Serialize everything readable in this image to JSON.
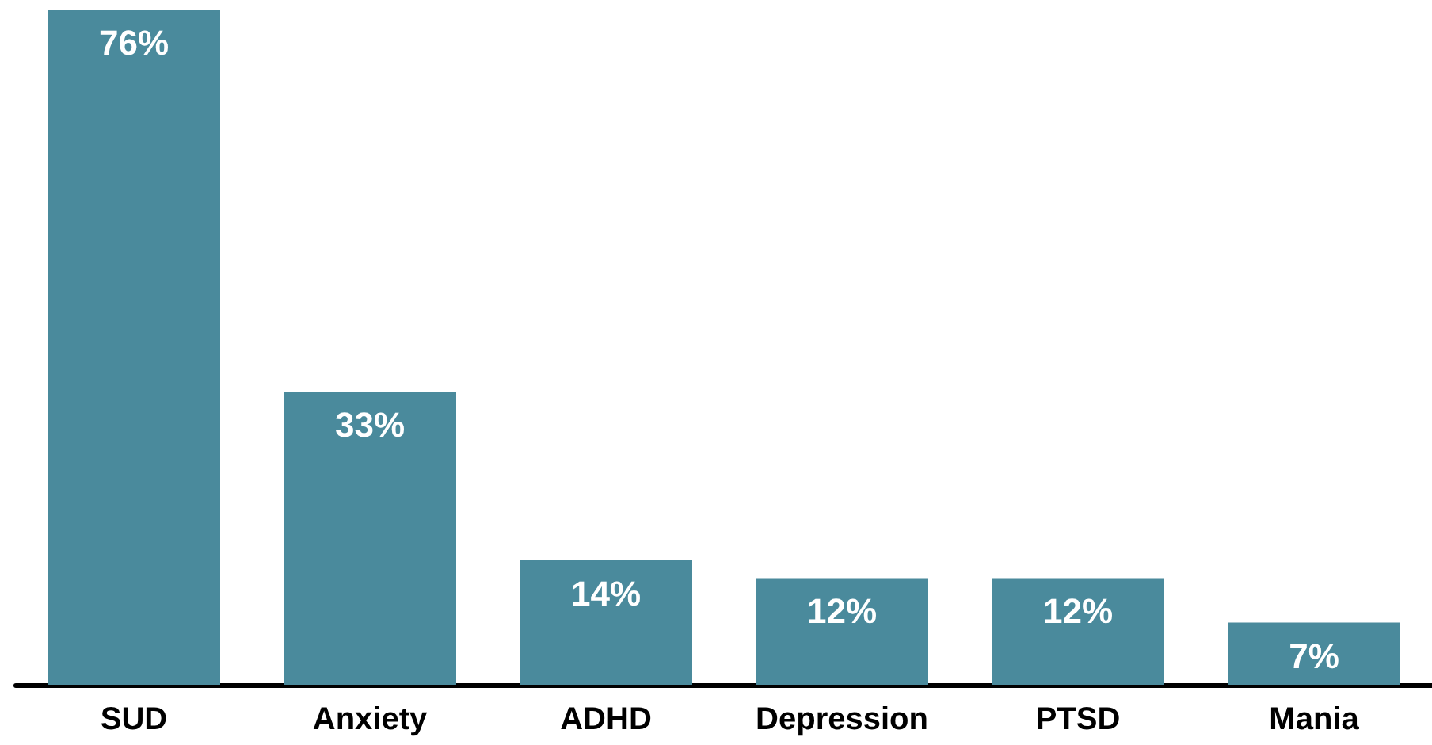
{
  "chart_data": {
    "type": "bar",
    "categories": [
      "SUD",
      "Anxiety",
      "ADHD",
      "Depression",
      "PTSD",
      "Mania"
    ],
    "values": [
      76,
      33,
      14,
      12,
      12,
      7
    ],
    "value_labels": [
      "76%",
      "33%",
      "14%",
      "12%",
      "12%",
      "7%"
    ],
    "color": "#4a8a9c"
  }
}
